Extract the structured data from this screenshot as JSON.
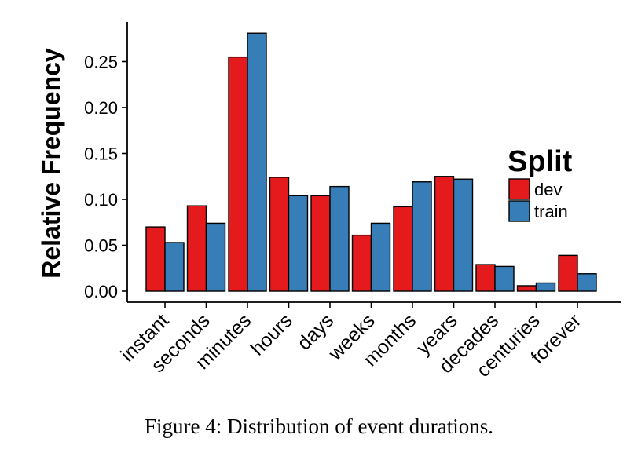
{
  "caption": "Figure 4: Distribution of event durations.",
  "chart_data": {
    "type": "bar",
    "ylabel": "Relative Frequency",
    "xlabel": "",
    "ylim": [
      0,
      0.29
    ],
    "yticks": [
      "0.00",
      "0.05",
      "0.10",
      "0.15",
      "0.20",
      "0.25"
    ],
    "categories": [
      "instant",
      "seconds",
      "minutes",
      "hours",
      "days",
      "weeks",
      "months",
      "years",
      "decades",
      "centuries",
      "forever"
    ],
    "legend": {
      "title": "Split",
      "placement": "right"
    },
    "series": [
      {
        "name": "dev",
        "color": "#E41A1C",
        "values": [
          0.07,
          0.093,
          0.255,
          0.124,
          0.104,
          0.061,
          0.092,
          0.125,
          0.029,
          0.006,
          0.039
        ]
      },
      {
        "name": "train",
        "color": "#377EB8",
        "values": [
          0.053,
          0.074,
          0.281,
          0.104,
          0.114,
          0.074,
          0.119,
          0.122,
          0.027,
          0.009,
          0.019
        ]
      }
    ]
  }
}
